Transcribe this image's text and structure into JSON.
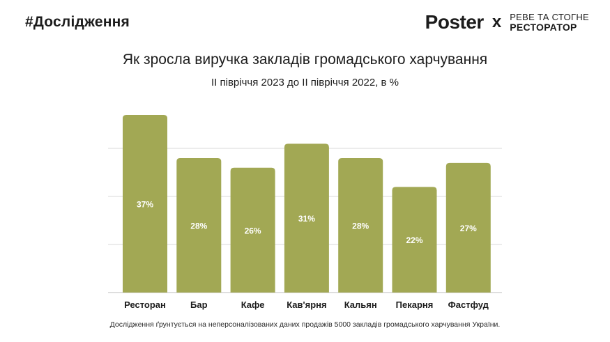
{
  "header": {
    "hashtag": "#Дослідження",
    "brand_left": "Poster",
    "brand_x": "x",
    "partner_line1": "РЕВЕ ТА СТОГНЕ",
    "partner_line2": "РЕСТОРАТОР"
  },
  "footnote": "Дослідження ґрунтується на неперсоналізованих даних продажів 5000 закладів громадського харчування України.",
  "colors": {
    "bar": "#a2a854",
    "grid": "#d9d9d9",
    "axis": "#bdbdbd",
    "bar_label": "#ffffff"
  },
  "chart_data": {
    "type": "bar",
    "title": "Як зросла виручка закладів громадського харчування",
    "subtitle": "ІІ півріччя 2023 до ІІ півріччя 2022, в %",
    "categories": [
      "Ресторан",
      "Бар",
      "Кафе",
      "Кав'ярня",
      "Кальян",
      "Пекарня",
      "Фастфуд"
    ],
    "values": [
      37,
      28,
      26,
      31,
      28,
      22,
      27
    ],
    "value_labels": [
      "37%",
      "28%",
      "26%",
      "31%",
      "28%",
      "22%",
      "27%"
    ],
    "xlabel": "",
    "ylabel": "",
    "ylim": [
      0,
      37
    ],
    "grid": true,
    "legend": "none"
  }
}
